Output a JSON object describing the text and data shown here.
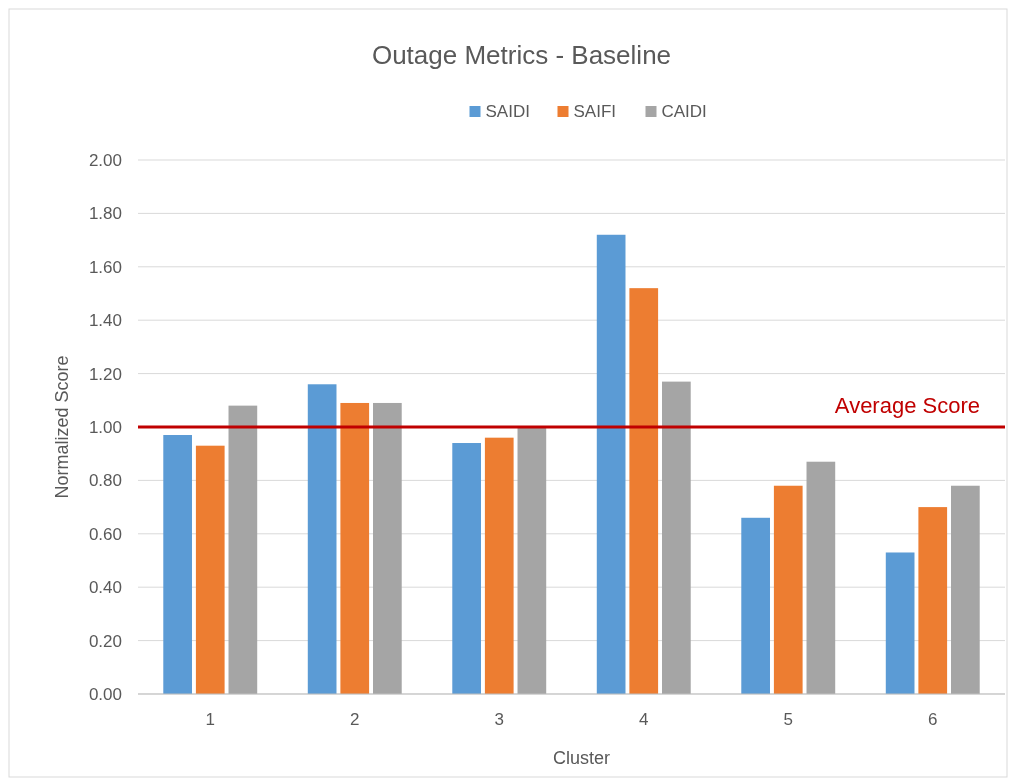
{
  "chart_data": {
    "type": "bar",
    "title": "Outage Metrics - Baseline",
    "xlabel": "Cluster",
    "ylabel": "Normalized Score",
    "categories": [
      "1",
      "2",
      "3",
      "4",
      "5",
      "6"
    ],
    "series": [
      {
        "name": "SAIDI",
        "color": "#5b9bd5",
        "values": [
          0.97,
          1.16,
          0.94,
          1.72,
          0.66,
          0.53
        ]
      },
      {
        "name": "SAIFI",
        "color": "#ed7d31",
        "values": [
          0.93,
          1.09,
          0.96,
          1.52,
          0.78,
          0.7
        ]
      },
      {
        "name": "CAIDI",
        "color": "#a5a5a5",
        "values": [
          1.08,
          1.09,
          1.0,
          1.17,
          0.87,
          0.78
        ]
      }
    ],
    "ylim": [
      0,
      2
    ],
    "yticks": [
      {
        "value": 0,
        "label": "0.00"
      },
      {
        "value": 0.2,
        "label": "0.20"
      },
      {
        "value": 0.4,
        "label": "0.40"
      },
      {
        "value": 0.6,
        "label": "0.60"
      },
      {
        "value": 0.8,
        "label": "0.80"
      },
      {
        "value": 1,
        "label": "1.00"
      },
      {
        "value": 1.2,
        "label": "1.20"
      },
      {
        "value": 1.4,
        "label": "1.40"
      },
      {
        "value": 1.6,
        "label": "1.60"
      },
      {
        "value": 1.8,
        "label": "1.80"
      },
      {
        "value": 2,
        "label": "2.00"
      }
    ],
    "grid": "y",
    "legend": "top",
    "ref_lines": [
      {
        "axis": "y",
        "value": 1,
        "label": "Average Score",
        "color": "#c00000"
      }
    ]
  }
}
